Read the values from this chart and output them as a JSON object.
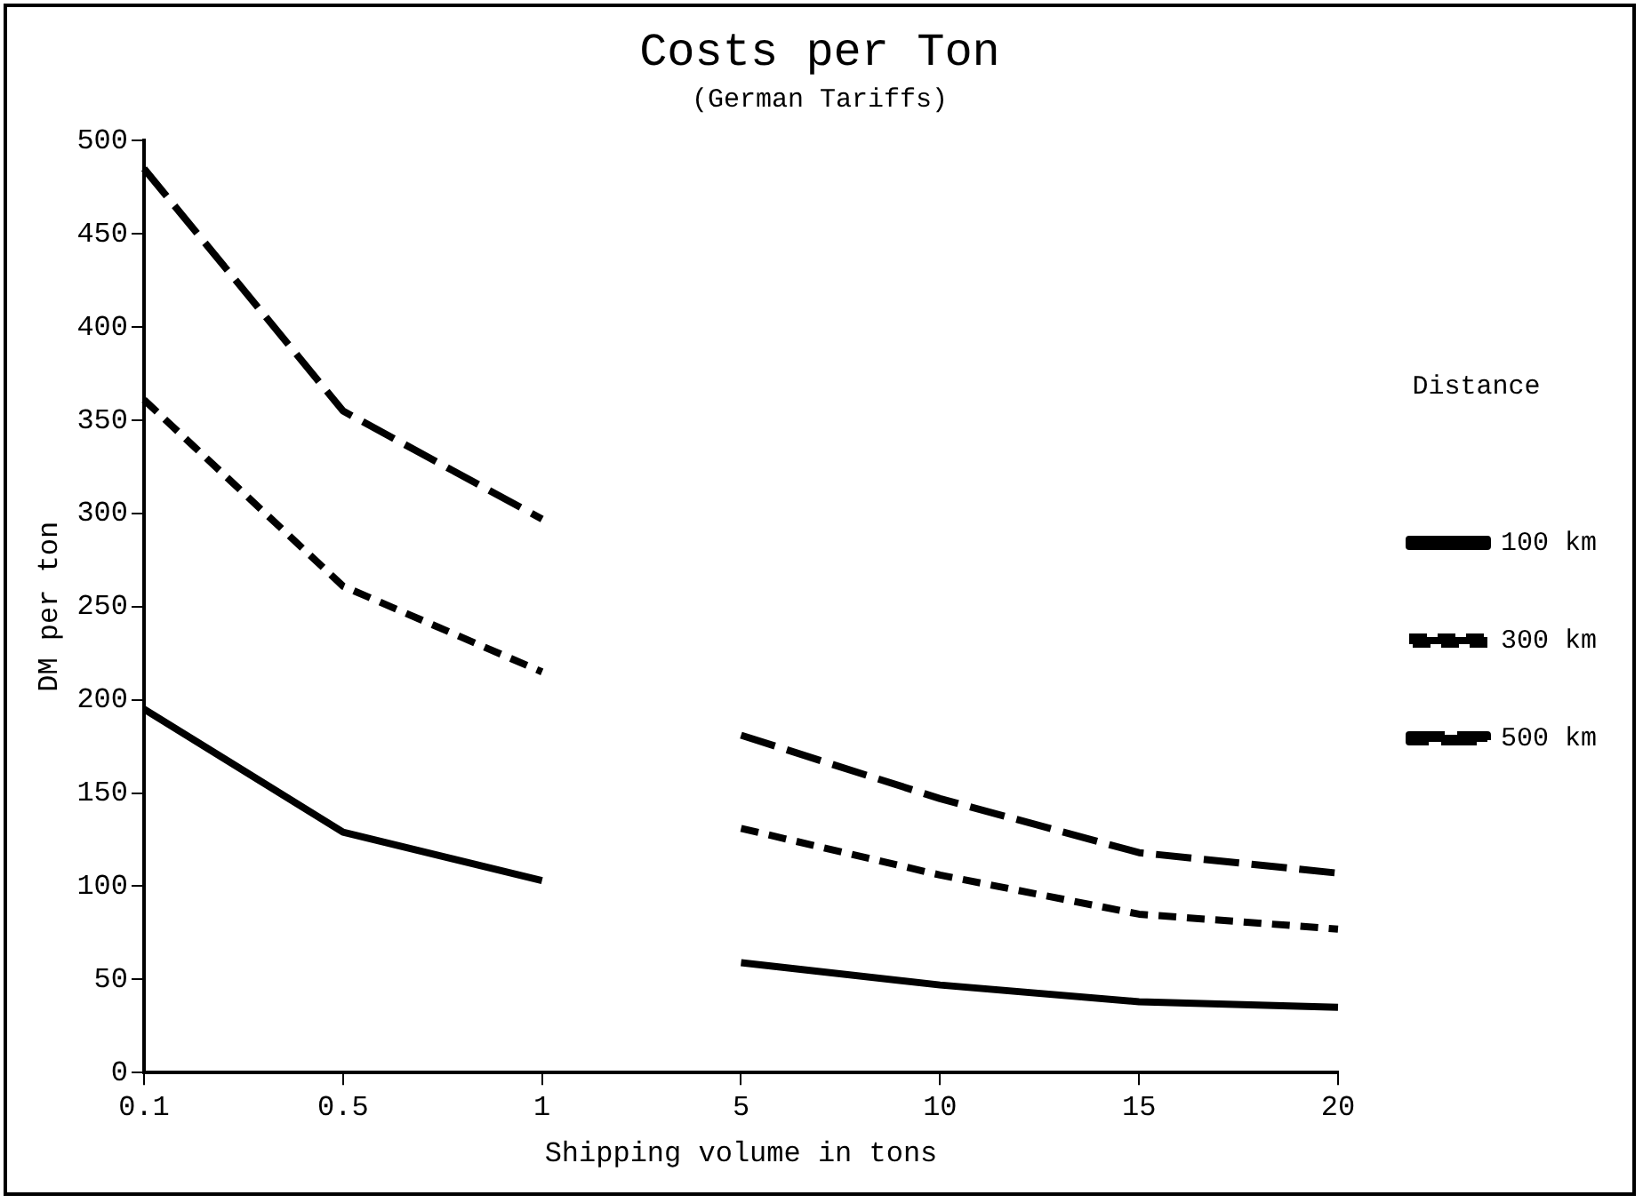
{
  "chart_data": {
    "type": "line",
    "title": "Costs per Ton",
    "subtitle": "(German Tariffs)",
    "xlabel": "Shipping volume in tons",
    "ylabel": "DM per ton",
    "legend_title": "Distance",
    "legend": "right",
    "grid": false,
    "marker": "none",
    "categories": [
      "0.1",
      "0.5",
      "1",
      "5",
      "10",
      "15",
      "20"
    ],
    "ylim": [
      0,
      500
    ],
    "yticks": [
      0,
      50,
      100,
      150,
      200,
      250,
      300,
      350,
      400,
      450,
      500
    ],
    "series": [
      {
        "name": "100 km",
        "color": "#000000",
        "line_style": "solid",
        "values": [
          195,
          129,
          103,
          null,
          null,
          null,
          null
        ]
      },
      {
        "name": "300 km",
        "color": "#000000",
        "line_style": "dotted",
        "values": [
          361,
          261,
          215,
          null,
          null,
          null,
          null
        ]
      },
      {
        "name": "500 km",
        "color": "#000000",
        "line_style": "dashed",
        "values": [
          485,
          355,
          297,
          null,
          null,
          null,
          null
        ]
      },
      {
        "color": "#000000",
        "line_style": "solid",
        "values": [
          null,
          null,
          null,
          59,
          47,
          38,
          35
        ]
      },
      {
        "color": "#000000",
        "line_style": "dotted",
        "values": [
          null,
          null,
          null,
          131,
          106,
          85,
          77
        ]
      },
      {
        "color": "#000000",
        "line_style": "dashed",
        "values": [
          null,
          null,
          null,
          181,
          147,
          118,
          107
        ]
      }
    ]
  }
}
